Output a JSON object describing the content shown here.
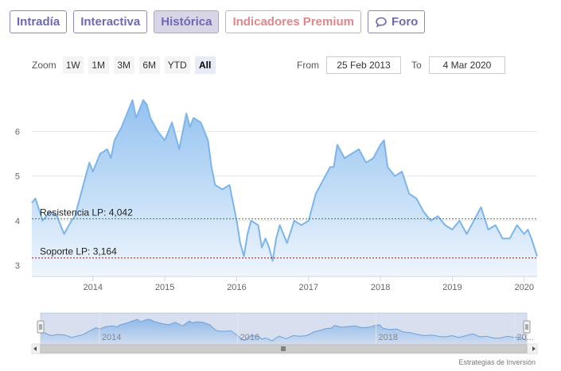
{
  "tabs": [
    {
      "label": "Intradía"
    },
    {
      "label": "Interactiva"
    },
    {
      "label": "Histórica"
    },
    {
      "label": "Indicadores Premium"
    },
    {
      "label": "Foro",
      "icon": "chat-bubble-icon"
    }
  ],
  "range_selector": {
    "zoom_label": "Zoom",
    "buttons": [
      "1W",
      "1M",
      "3M",
      "6M",
      "YTD",
      "All"
    ],
    "selected": "All",
    "from_label": "From",
    "from_value": "25 Feb 2013",
    "to_label": "To",
    "to_value": "4 Mar 2020"
  },
  "credit": "Estrategias de Inversión",
  "colors": {
    "line": "#7cb5ec",
    "area_top": "#8ebfef",
    "resistance": "#2e8b2e",
    "support": "#8b1a1a",
    "tab_border": "#8e86c9",
    "premium": "#e0878b"
  },
  "chart_data": {
    "type": "area",
    "yticks": [
      "3",
      "4",
      "5",
      "6"
    ],
    "ylim": [
      2.75,
      6.95
    ],
    "xlim": [
      2013.15,
      2020.18
    ],
    "xticks": [
      "2014",
      "2015",
      "2016",
      "2017",
      "2018",
      "2019",
      "2020"
    ],
    "grid": "horizontal",
    "series": [
      {
        "x": [
          2013.15,
          2013.2,
          2013.3,
          2013.4,
          2013.5,
          2013.6,
          2013.7,
          2013.75,
          2013.85,
          2013.95,
          2014.0,
          2014.1,
          2014.2,
          2014.25,
          2014.3,
          2014.4,
          2014.5,
          2014.55,
          2014.6,
          2014.65,
          2014.7,
          2014.75,
          2014.8,
          2014.9,
          2015.0,
          2015.1,
          2015.2,
          2015.3,
          2015.35,
          2015.4,
          2015.5,
          2015.6,
          2015.65,
          2015.7,
          2015.8,
          2015.9,
          2016.0,
          2016.05,
          2016.1,
          2016.15,
          2016.2,
          2016.3,
          2016.35,
          2016.4,
          2016.45,
          2016.5,
          2016.55,
          2016.6,
          2016.7,
          2016.8,
          2016.9,
          2017.0,
          2017.1,
          2017.2,
          2017.3,
          2017.35,
          2017.4,
          2017.5,
          2017.6,
          2017.7,
          2017.8,
          2017.9,
          2018.0,
          2018.05,
          2018.1,
          2018.2,
          2018.3,
          2018.4,
          2018.5,
          2018.6,
          2018.7,
          2018.8,
          2018.9,
          2019.0,
          2019.1,
          2019.2,
          2019.3,
          2019.4,
          2019.5,
          2019.6,
          2019.7,
          2019.8,
          2019.9,
          2020.0,
          2020.05,
          2020.1,
          2020.18
        ],
        "y": [
          4.4,
          4.5,
          4.0,
          4.2,
          4.1,
          3.7,
          4.0,
          4.1,
          4.7,
          5.3,
          5.1,
          5.5,
          5.6,
          5.4,
          5.8,
          6.1,
          6.5,
          6.7,
          6.3,
          6.5,
          6.7,
          6.6,
          6.3,
          6.0,
          5.8,
          6.2,
          5.6,
          6.4,
          6.1,
          6.3,
          6.2,
          5.8,
          5.2,
          4.8,
          4.7,
          4.8,
          4.0,
          3.5,
          3.2,
          3.7,
          4.0,
          3.9,
          3.4,
          3.6,
          3.4,
          3.1,
          3.6,
          3.9,
          3.5,
          4.0,
          3.9,
          4.0,
          4.6,
          4.9,
          5.2,
          5.2,
          5.7,
          5.4,
          5.5,
          5.6,
          5.3,
          5.4,
          5.7,
          5.8,
          5.2,
          5.0,
          5.1,
          4.6,
          4.5,
          4.2,
          4.0,
          4.1,
          3.9,
          3.8,
          4.0,
          3.7,
          4.0,
          4.3,
          3.8,
          3.9,
          3.6,
          3.6,
          3.9,
          3.7,
          3.8,
          3.6,
          3.2
        ]
      }
    ],
    "annotations": [
      {
        "label": "Resistencia LP: 4,042",
        "value": 4.042
      },
      {
        "label": "Soporte LP: 3,164",
        "value": 3.164
      }
    ],
    "navigator_xticks": [
      "2014",
      "2016",
      "2018",
      "20..."
    ]
  }
}
